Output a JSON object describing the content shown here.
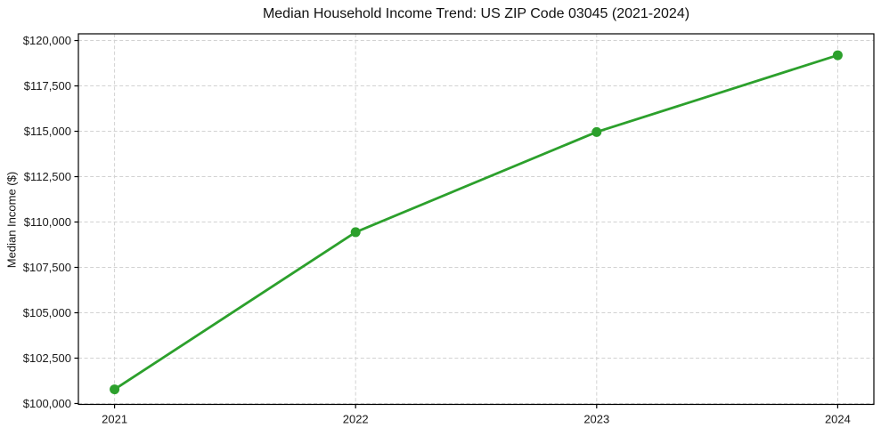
{
  "chart_data": {
    "type": "line",
    "title": "Median Household Income Trend: US ZIP Code 03045 (2021-2024)",
    "xlabel": "",
    "ylabel": "Median Income ($)",
    "x": [
      2021,
      2022,
      2023,
      2024
    ],
    "series": [
      {
        "name": "Median Household Income",
        "values": [
          100780,
          109440,
          114960,
          119190
        ]
      }
    ],
    "x_ticks": [
      {
        "value": 2021,
        "label": "2021"
      },
      {
        "value": 2022,
        "label": "2022"
      },
      {
        "value": 2023,
        "label": "2023"
      },
      {
        "value": 2024,
        "label": "2024"
      }
    ],
    "y_ticks": [
      {
        "value": 100000,
        "label": "$100,000"
      },
      {
        "value": 102500,
        "label": "$102,500"
      },
      {
        "value": 105000,
        "label": "$105,000"
      },
      {
        "value": 107500,
        "label": "$107,500"
      },
      {
        "value": 110000,
        "label": "$110,000"
      },
      {
        "value": 112500,
        "label": "$112,500"
      },
      {
        "value": 115000,
        "label": "$115,000"
      },
      {
        "value": 117500,
        "label": "$117,500"
      },
      {
        "value": 120000,
        "label": "$120,000"
      }
    ],
    "xlim": [
      2020.85,
      2024.15
    ],
    "ylim": [
      99950,
      120370
    ],
    "grid": true,
    "grid_style": "dashed",
    "legend": null,
    "colors": {
      "line": "#2ca02c",
      "marker": "#2ca02c",
      "grid": "#d2d2d2",
      "spine": "#000000",
      "text": "#191919",
      "background": "#ffffff"
    },
    "marker": "circle"
  }
}
